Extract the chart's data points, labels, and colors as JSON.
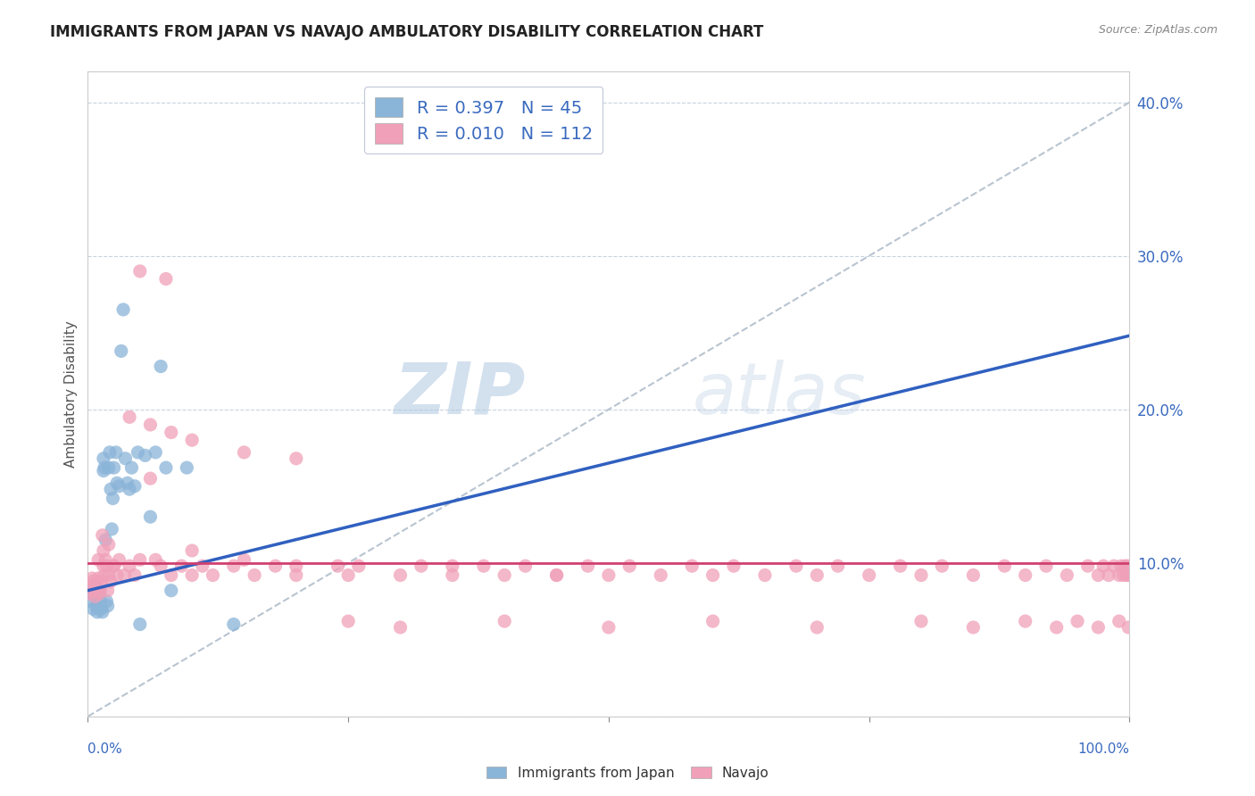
{
  "title": "IMMIGRANTS FROM JAPAN VS NAVAJO AMBULATORY DISABILITY CORRELATION CHART",
  "source": "Source: ZipAtlas.com",
  "ylabel": "Ambulatory Disability",
  "legend_labels": [
    "Immigrants from Japan",
    "Navajo"
  ],
  "legend_r": [
    0.397,
    0.01
  ],
  "legend_n": [
    45,
    112
  ],
  "blue_color": "#8ab4d8",
  "pink_color": "#f0a0b8",
  "trend_blue_color": "#3060c0",
  "trend_pink_color": "#d04070",
  "ref_line_color": "#b8c4d0",
  "watermark_color": "#ccdaeb",
  "ytick_labels": [
    "",
    "10.0%",
    "20.0%",
    "30.0%",
    "40.0%"
  ],
  "ytick_vals": [
    0.0,
    0.1,
    0.2,
    0.3,
    0.4
  ],
  "blue_x": [
    0.003,
    0.004,
    0.005,
    0.006,
    0.007,
    0.008,
    0.009,
    0.01,
    0.01,
    0.011,
    0.012,
    0.013,
    0.014,
    0.015,
    0.015,
    0.016,
    0.017,
    0.018,
    0.019,
    0.02,
    0.021,
    0.022,
    0.023,
    0.024,
    0.025,
    0.027,
    0.028,
    0.03,
    0.032,
    0.034,
    0.036,
    0.038,
    0.04,
    0.042,
    0.045,
    0.048,
    0.05,
    0.055,
    0.06,
    0.065,
    0.07,
    0.075,
    0.08,
    0.095,
    0.14
  ],
  "blue_y": [
    0.075,
    0.08,
    0.07,
    0.085,
    0.078,
    0.072,
    0.068,
    0.072,
    0.08,
    0.082,
    0.075,
    0.07,
    0.068,
    0.16,
    0.168,
    0.162,
    0.115,
    0.075,
    0.072,
    0.162,
    0.172,
    0.148,
    0.122,
    0.142,
    0.162,
    0.172,
    0.152,
    0.15,
    0.238,
    0.265,
    0.168,
    0.152,
    0.148,
    0.162,
    0.15,
    0.172,
    0.06,
    0.17,
    0.13,
    0.172,
    0.228,
    0.162,
    0.082,
    0.162,
    0.06
  ],
  "pink_x": [
    0.002,
    0.003,
    0.004,
    0.005,
    0.006,
    0.007,
    0.008,
    0.009,
    0.01,
    0.011,
    0.012,
    0.013,
    0.014,
    0.015,
    0.016,
    0.017,
    0.018,
    0.019,
    0.02,
    0.022,
    0.025,
    0.028,
    0.03,
    0.035,
    0.04,
    0.045,
    0.05,
    0.06,
    0.065,
    0.07,
    0.08,
    0.09,
    0.1,
    0.11,
    0.12,
    0.14,
    0.16,
    0.18,
    0.2,
    0.24,
    0.26,
    0.3,
    0.32,
    0.35,
    0.38,
    0.4,
    0.42,
    0.45,
    0.48,
    0.5,
    0.52,
    0.55,
    0.58,
    0.6,
    0.62,
    0.65,
    0.68,
    0.7,
    0.72,
    0.75,
    0.78,
    0.8,
    0.82,
    0.85,
    0.88,
    0.9,
    0.92,
    0.94,
    0.96,
    0.97,
    0.975,
    0.98,
    0.985,
    0.99,
    0.992,
    0.994,
    0.996,
    0.997,
    0.998,
    0.999,
    0.04,
    0.06,
    0.08,
    0.1,
    0.15,
    0.2,
    0.25,
    0.3,
    0.4,
    0.5,
    0.6,
    0.7,
    0.8,
    0.85,
    0.9,
    0.93,
    0.95,
    0.97,
    0.99,
    0.999,
    0.01,
    0.015,
    0.02,
    0.025,
    0.05,
    0.075,
    0.1,
    0.15,
    0.2,
    0.25,
    0.35,
    0.45
  ],
  "pink_y": [
    0.08,
    0.085,
    0.09,
    0.088,
    0.082,
    0.078,
    0.085,
    0.088,
    0.09,
    0.08,
    0.082,
    0.088,
    0.118,
    0.108,
    0.092,
    0.102,
    0.098,
    0.082,
    0.112,
    0.088,
    0.098,
    0.092,
    0.102,
    0.092,
    0.098,
    0.092,
    0.102,
    0.155,
    0.102,
    0.098,
    0.092,
    0.098,
    0.092,
    0.098,
    0.092,
    0.098,
    0.092,
    0.098,
    0.092,
    0.098,
    0.098,
    0.092,
    0.098,
    0.092,
    0.098,
    0.092,
    0.098,
    0.092,
    0.098,
    0.092,
    0.098,
    0.092,
    0.098,
    0.092,
    0.098,
    0.092,
    0.098,
    0.092,
    0.098,
    0.092,
    0.098,
    0.092,
    0.098,
    0.092,
    0.098,
    0.092,
    0.098,
    0.092,
    0.098,
    0.092,
    0.098,
    0.092,
    0.098,
    0.092,
    0.098,
    0.092,
    0.098,
    0.092,
    0.098,
    0.092,
    0.195,
    0.19,
    0.185,
    0.18,
    0.172,
    0.168,
    0.062,
    0.058,
    0.062,
    0.058,
    0.062,
    0.058,
    0.062,
    0.058,
    0.062,
    0.058,
    0.062,
    0.058,
    0.062,
    0.058,
    0.102,
    0.098,
    0.092,
    0.098,
    0.29,
    0.285,
    0.108,
    0.102,
    0.098,
    0.092,
    0.098,
    0.092
  ],
  "blue_trend": [
    0.0,
    1.0,
    0.082,
    0.248
  ],
  "pink_trend": [
    0.0,
    1.0,
    0.1,
    0.1
  ],
  "ref_line": [
    0.0,
    1.0,
    0.0,
    0.4
  ]
}
